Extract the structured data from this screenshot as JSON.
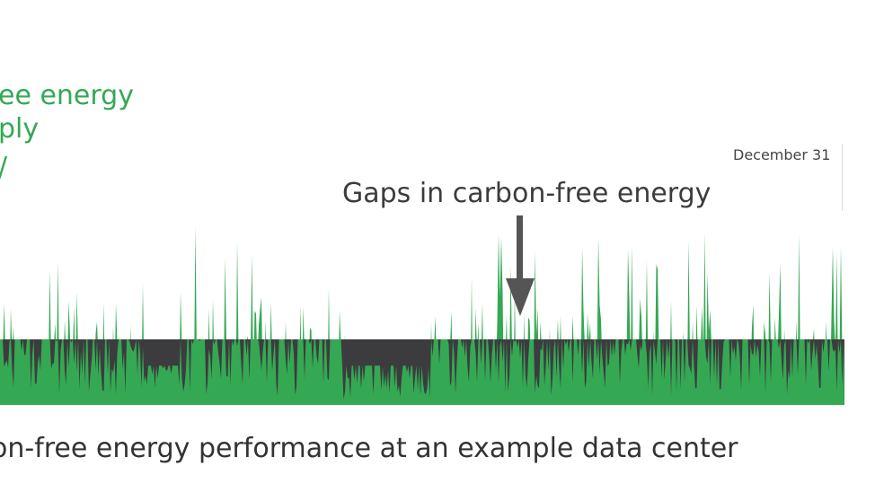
{
  "legend": {
    "line1": "ee energy",
    "line2": "ply",
    "line3": "/"
  },
  "annotation": "Gaps in carbon-free energy",
  "date_label": "December 31",
  "caption": "on-free energy performance at an example data center",
  "colors": {
    "supply": "#34a853",
    "demand": "#3c3c3e",
    "annotation_arrow": "#555555"
  },
  "chart_data": {
    "type": "area",
    "title": "",
    "xlabel": "",
    "ylabel": "",
    "x_end_label": "December 31",
    "series": [
      {
        "name": "",
        "description": "carbon-free energy supply (green spikes)"
      },
      {
        "name": "",
        "description": "constant demand (dark band)"
      }
    ],
    "demand_level": 1.0,
    "supply_max_ratio": 2.8,
    "annotation": "Gaps in carbon-free energy"
  }
}
